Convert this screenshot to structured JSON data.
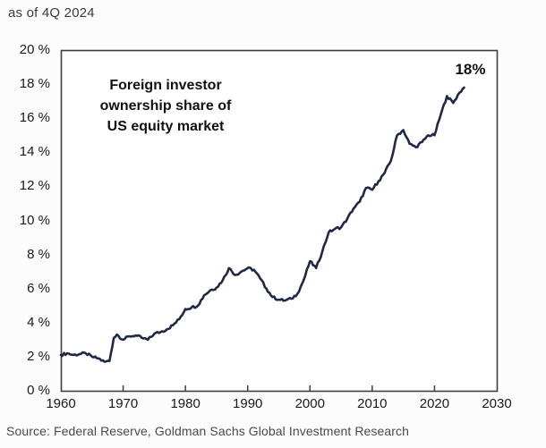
{
  "header": {
    "as_of": "as of 4Q 2024"
  },
  "chart_data": {
    "type": "line",
    "title": "Foreign investor ownership share of US equity market",
    "annotation_lines": [
      "Foreign investor",
      "ownership share of",
      "US equity market"
    ],
    "end_label": "18%",
    "xlabel": "",
    "ylabel": "",
    "xlim": [
      1960,
      2030
    ],
    "ylim": [
      0,
      20
    ],
    "grid": false,
    "legend_position": "none",
    "x_tick_labels": [
      "1960",
      "1970",
      "1980",
      "1990",
      "2000",
      "2010",
      "2020",
      "2030"
    ],
    "y_tick_labels": [
      "20 %",
      "18 %",
      "16 %",
      "14 %",
      "12 %",
      "10 %",
      "8 %",
      "6 %",
      "4 %",
      "2 %",
      "0 %"
    ],
    "line_color": "#1f2844",
    "axis_color": "#3d3d3d",
    "series": [
      {
        "name": "Foreign investor ownership share of US equity market (%)",
        "points": [
          [
            1960,
            2.1
          ],
          [
            1961,
            2.2
          ],
          [
            1962,
            2.1
          ],
          [
            1963,
            2.15
          ],
          [
            1964,
            2.2
          ],
          [
            1965,
            2.0
          ],
          [
            1966,
            1.9
          ],
          [
            1967,
            1.7
          ],
          [
            1967.8,
            1.75
          ],
          [
            1968.5,
            3.1
          ],
          [
            1969,
            3.3
          ],
          [
            1970,
            3.0
          ],
          [
            1971,
            3.2
          ],
          [
            1972,
            3.25
          ],
          [
            1973,
            3.1
          ],
          [
            1974,
            3.0
          ],
          [
            1975,
            3.35
          ],
          [
            1976,
            3.45
          ],
          [
            1977,
            3.6
          ],
          [
            1978,
            3.85
          ],
          [
            1979,
            4.2
          ],
          [
            1980,
            4.8
          ],
          [
            1981,
            4.9
          ],
          [
            1982,
            5.0
          ],
          [
            1983,
            5.6
          ],
          [
            1984,
            5.9
          ],
          [
            1985,
            6.05
          ],
          [
            1986,
            6.5
          ],
          [
            1987,
            7.2
          ],
          [
            1988,
            6.8
          ],
          [
            1989,
            7.0
          ],
          [
            1990,
            7.2
          ],
          [
            1991,
            7.1
          ],
          [
            1992,
            6.6
          ],
          [
            1993,
            6.0
          ],
          [
            1994,
            5.5
          ],
          [
            1995,
            5.35
          ],
          [
            1996,
            5.3
          ],
          [
            1997,
            5.4
          ],
          [
            1998,
            5.7
          ],
          [
            1999,
            6.5
          ],
          [
            2000,
            7.6
          ],
          [
            2001,
            7.2
          ],
          [
            2002,
            8.2
          ],
          [
            2003,
            9.3
          ],
          [
            2004,
            9.5
          ],
          [
            2005,
            9.6
          ],
          [
            2006,
            10.1
          ],
          [
            2007,
            10.7
          ],
          [
            2008,
            11.1
          ],
          [
            2009,
            11.9
          ],
          [
            2010,
            11.8
          ],
          [
            2011,
            12.3
          ],
          [
            2012,
            12.8
          ],
          [
            2013,
            13.5
          ],
          [
            2014,
            15.0
          ],
          [
            2015,
            15.3
          ],
          [
            2016,
            14.5
          ],
          [
            2017,
            14.3
          ],
          [
            2018,
            14.6
          ],
          [
            2019,
            15.0
          ],
          [
            2020,
            15.0
          ],
          [
            2021,
            16.2
          ],
          [
            2022,
            17.3
          ],
          [
            2023,
            16.9
          ],
          [
            2024,
            17.5
          ],
          [
            2024.75,
            17.8
          ]
        ]
      }
    ]
  },
  "source": {
    "text": "Source: Federal Reserve, Goldman Sachs Global Investment Research"
  }
}
